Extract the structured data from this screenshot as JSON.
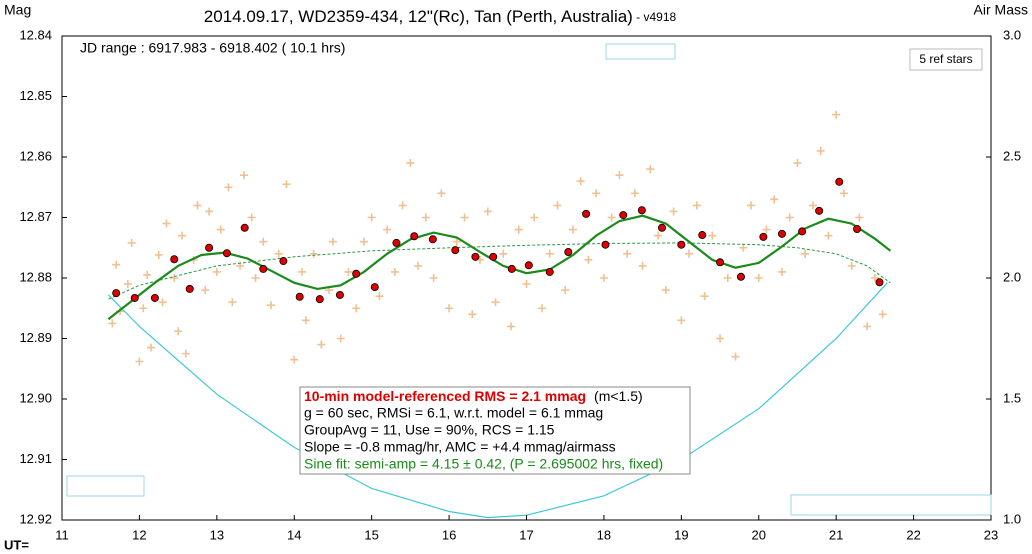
{
  "chart_data": {
    "type": "scatter",
    "title": "2014.09.17, WD2359-434, 12\"(Rc), Tan (Perth, Australia)",
    "subtitle": " - v4918",
    "ylabel": "Mag",
    "y2label": "Air Mass",
    "xlabel": "UT=",
    "annotations": {
      "jd_range": "JD range : 6917.983 - 6918.402 ( 10.1 hrs)",
      "ref_stars": "5 ref stars",
      "rms_line": "10-min model-referenced RMS = 2.1 mmag",
      "rms_note": "(m<1.5)",
      "line2": "g = 60 sec, RMSi = 6.1, w.r.t. model = 6.1 mmag",
      "line3": "GroupAvg = 11, Use = 90%, RCS = 1.15",
      "line4": "Slope = -0.8 mmag/hr, AMC = +4.4 mmag/airmass",
      "line5": "Sine fit: semi-amp = 4.15 ± 0.42, (P = 2.695002 hrs, fixed)"
    },
    "xlim": [
      11,
      23
    ],
    "xticks": [
      11,
      12,
      13,
      14,
      15,
      16,
      17,
      18,
      19,
      20,
      21,
      22,
      23
    ],
    "ylim": [
      12.84,
      12.92
    ],
    "y_inverted": true,
    "yticks": [
      12.84,
      12.85,
      12.86,
      12.87,
      12.88,
      12.89,
      {
        "value": 12.9,
        "label": "12.90"
      },
      12.91,
      12.92
    ],
    "y2lim": [
      1,
      3
    ],
    "y2ticks": [
      {
        "value": 3,
        "label": "3.0"
      },
      2.5,
      {
        "value": 2,
        "label": "2.0"
      },
      1.5,
      {
        "value": 1,
        "label": "1.0"
      }
    ],
    "series": [
      {
        "marker": "plus",
        "color": "#f0c090",
        "x": [
          11.65,
          11.7,
          11.75,
          11.85,
          11.9,
          12.0,
          12.05,
          12.1,
          12.15,
          12.25,
          12.3,
          12.35,
          12.45,
          12.5,
          12.55,
          12.6,
          12.7,
          12.75,
          12.85,
          12.9,
          13.0,
          13.05,
          13.15,
          13.2,
          13.3,
          13.35,
          13.45,
          13.5,
          13.6,
          13.7,
          13.8,
          13.9,
          14.0,
          14.1,
          14.15,
          14.25,
          14.35,
          14.45,
          14.5,
          14.6,
          14.7,
          14.8,
          14.9,
          15.0,
          15.1,
          15.2,
          15.3,
          15.4,
          15.5,
          15.6,
          15.7,
          15.8,
          15.9,
          16.0,
          16.1,
          16.2,
          16.3,
          16.4,
          16.5,
          16.6,
          16.7,
          16.8,
          16.9,
          17.0,
          17.1,
          17.2,
          17.3,
          17.4,
          17.5,
          17.6,
          17.7,
          17.8,
          17.9,
          18.0,
          18.1,
          18.2,
          18.3,
          18.4,
          18.5,
          18.6,
          18.7,
          18.8,
          18.9,
          19.0,
          19.1,
          19.2,
          19.3,
          19.4,
          19.5,
          19.6,
          19.7,
          19.8,
          19.9,
          20.0,
          20.1,
          20.2,
          20.3,
          20.4,
          20.5,
          20.6,
          20.7,
          20.8,
          20.9,
          21.0,
          21.1,
          21.2,
          21.3,
          21.4,
          21.5,
          21.6
        ],
        "values": [
          12.8875,
          12.8778,
          12.8855,
          12.881,
          12.8742,
          12.8938,
          12.885,
          12.8795,
          12.8915,
          12.8762,
          12.884,
          12.871,
          12.88,
          12.8888,
          12.873,
          12.8925,
          12.877,
          12.868,
          12.882,
          12.869,
          12.879,
          12.872,
          12.865,
          12.884,
          12.878,
          12.863,
          12.87,
          12.88,
          12.874,
          12.8845,
          12.876,
          12.8645,
          12.8935,
          12.879,
          12.887,
          12.876,
          12.891,
          12.882,
          12.874,
          12.89,
          12.879,
          12.885,
          12.874,
          12.87,
          12.883,
          12.872,
          12.879,
          12.868,
          12.861,
          12.878,
          12.87,
          12.88,
          12.866,
          12.885,
          12.874,
          12.87,
          12.886,
          12.877,
          12.869,
          12.884,
          12.876,
          12.888,
          12.872,
          12.881,
          12.87,
          12.885,
          12.876,
          12.868,
          12.882,
          12.872,
          12.864,
          12.877,
          12.866,
          12.88,
          12.87,
          12.863,
          12.876,
          12.866,
          12.878,
          12.862,
          12.873,
          12.882,
          12.869,
          12.887,
          12.876,
          12.868,
          12.883,
          12.873,
          12.89,
          12.88,
          12.893,
          12.875,
          12.868,
          12.88,
          12.872,
          12.867,
          12.879,
          12.87,
          12.861,
          12.876,
          12.868,
          12.859,
          12.873,
          12.853,
          12.866,
          12.878,
          12.87,
          12.888,
          12.88,
          12.886
        ]
      },
      {
        "marker": "line",
        "color": "#3cc8d8",
        "axis": "y2",
        "x": [
          11.6,
          12,
          13,
          14,
          15,
          16,
          16.5,
          17,
          18,
          19,
          20,
          21,
          21.66
        ],
        "values": [
          1.93,
          1.8,
          1.52,
          1.3,
          1.13,
          1.035,
          1.01,
          1.02,
          1.1,
          1.25,
          1.46,
          1.75,
          1.98
        ]
      },
      {
        "marker": "dashed",
        "color": "#2a9a3a",
        "x": [
          11.6,
          12,
          13,
          14,
          15,
          16,
          17,
          18,
          19,
          20,
          20.5,
          21,
          21.4,
          21.7
        ],
        "values": [
          12.8835,
          12.8812,
          12.878,
          12.8765,
          12.8755,
          12.875,
          12.8746,
          12.8743,
          12.8742,
          12.8745,
          12.875,
          12.876,
          12.878,
          12.8808
        ]
      },
      {
        "marker": "line",
        "color": "#1a8a1a",
        "x": [
          11.6,
          11.9,
          12.2,
          12.5,
          12.8,
          13.1,
          13.4,
          13.7,
          14.0,
          14.3,
          14.6,
          14.9,
          15.2,
          15.5,
          15.8,
          16.1,
          16.4,
          16.7,
          17.0,
          17.3,
          17.6,
          17.9,
          18.2,
          18.5,
          18.8,
          19.1,
          19.4,
          19.7,
          20.0,
          20.3,
          20.6,
          20.9,
          21.2,
          21.5,
          21.7
        ],
        "values": [
          12.8868,
          12.8838,
          12.8808,
          12.878,
          12.8762,
          12.8758,
          12.8768,
          12.8788,
          12.8808,
          12.8818,
          12.8812,
          12.879,
          12.876,
          12.8736,
          12.8725,
          12.8733,
          12.8757,
          12.878,
          12.8792,
          12.8786,
          12.8762,
          12.873,
          12.8706,
          12.8697,
          12.871,
          12.874,
          12.877,
          12.8783,
          12.8775,
          12.8748,
          12.8718,
          12.8702,
          12.871,
          12.8735,
          12.8755
        ]
      },
      {
        "marker": "dot",
        "color": "#dd0000",
        "x": [
          11.7,
          11.94,
          12.2,
          12.45,
          12.65,
          12.9,
          13.13,
          13.36,
          13.6,
          13.86,
          14.07,
          14.33,
          14.59,
          14.8,
          15.04,
          15.32,
          15.55,
          15.79,
          16.08,
          16.34,
          16.57,
          16.81,
          17.03,
          17.3,
          17.54,
          17.77,
          18.02,
          18.25,
          18.49,
          18.75,
          19.0,
          19.27,
          19.5,
          19.77,
          20.06,
          20.3,
          20.56,
          20.78,
          21.04,
          21.27,
          21.56
        ],
        "values": [
          12.8825,
          12.8833,
          12.8833,
          12.8769,
          12.8818,
          12.875,
          12.8759,
          12.8717,
          12.8785,
          12.8772,
          12.8831,
          12.8835,
          12.8828,
          12.8793,
          12.8815,
          12.8742,
          12.8731,
          12.8736,
          12.8754,
          12.8765,
          12.8765,
          12.8785,
          12.8779,
          12.879,
          12.8757,
          12.8694,
          12.8745,
          12.8696,
          12.8688,
          12.8717,
          12.8745,
          12.8729,
          12.8774,
          12.8798,
          12.8732,
          12.8727,
          12.8723,
          12.8689,
          12.8641,
          12.8719,
          12.8807
        ]
      }
    ]
  }
}
